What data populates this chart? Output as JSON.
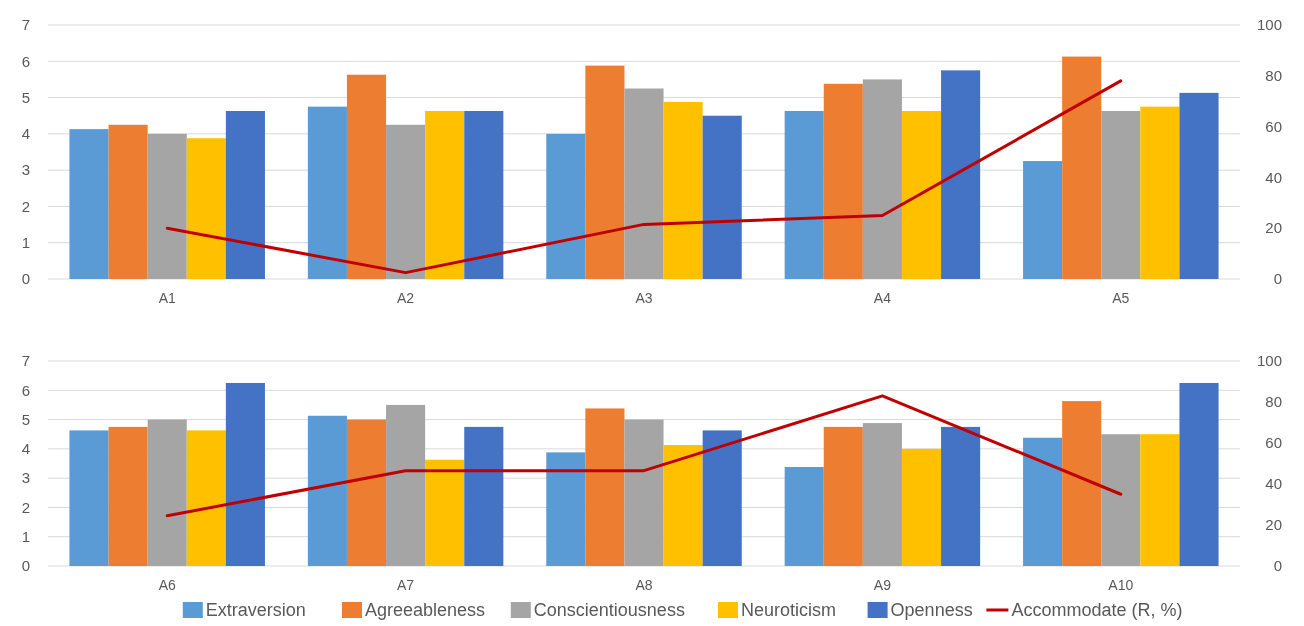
{
  "chart_data": [
    {
      "type": "bar",
      "categories": [
        "A1",
        "A2",
        "A3",
        "A4",
        "A5"
      ],
      "ylim": [
        0,
        7
      ],
      "yticks": [
        0,
        1,
        2,
        3,
        4,
        5,
        6,
        7
      ],
      "y2lim": [
        0,
        100
      ],
      "y2ticks": [
        0,
        20,
        40,
        60,
        80,
        100
      ],
      "grid": "y",
      "series": [
        {
          "color": "#5b9bd5",
          "values": [
            4.13,
            4.75,
            4.0,
            4.63,
            3.25
          ]
        },
        {
          "color": "#ed7d31",
          "values": [
            4.25,
            5.63,
            5.88,
            5.38,
            6.13
          ]
        },
        {
          "color": "#a5a5a5",
          "values": [
            4.0,
            4.25,
            5.25,
            5.5,
            4.63
          ]
        },
        {
          "color": "#ffc000",
          "values": [
            3.88,
            4.63,
            4.88,
            4.63,
            4.75
          ]
        },
        {
          "color": "#4472c4",
          "values": [
            4.63,
            4.63,
            4.5,
            5.75,
            5.13
          ]
        },
        {
          "color": "#c00000",
          "type": "line",
          "axis": "y2",
          "values": [
            20,
            2.5,
            21.5,
            25,
            78
          ]
        }
      ]
    },
    {
      "type": "bar",
      "categories": [
        "A6",
        "A7",
        "A8",
        "A9",
        "A10"
      ],
      "ylim": [
        0,
        7
      ],
      "yticks": [
        0,
        1,
        2,
        3,
        4,
        5,
        6,
        7
      ],
      "y2lim": [
        0,
        100
      ],
      "y2ticks": [
        0,
        20,
        40,
        60,
        80,
        100
      ],
      "grid": "y",
      "legend": "bottom",
      "series": [
        {
          "name": "Extraversion",
          "color": "#5b9bd5",
          "values": [
            4.63,
            5.13,
            3.88,
            3.38,
            4.38
          ]
        },
        {
          "name": "Agreeableness",
          "color": "#ed7d31",
          "values": [
            4.75,
            5.0,
            5.38,
            4.75,
            5.63
          ]
        },
        {
          "name": "Conscientiousness",
          "color": "#a5a5a5",
          "values": [
            5.0,
            5.5,
            5.0,
            4.88,
            4.5
          ]
        },
        {
          "name": "Neuroticism",
          "color": "#ffc000",
          "values": [
            4.63,
            3.63,
            4.13,
            4.0,
            4.5
          ]
        },
        {
          "name": "Openness",
          "color": "#4472c4",
          "values": [
            6.25,
            4.75,
            4.63,
            4.75,
            6.25
          ]
        },
        {
          "name": "Accommodate (R, %)",
          "color": "#c00000",
          "type": "line",
          "axis": "y2",
          "values": [
            24.5,
            46.5,
            46.5,
            83,
            35
          ]
        }
      ]
    }
  ]
}
